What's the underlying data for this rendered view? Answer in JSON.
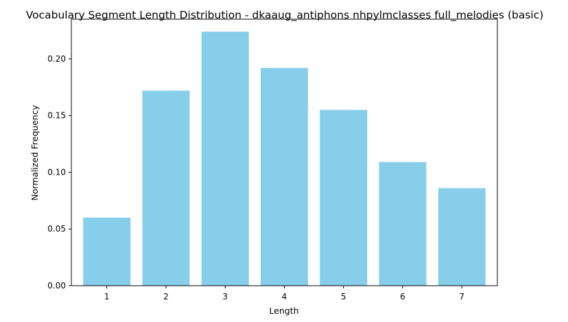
{
  "chart_data": {
    "type": "bar",
    "title": "Vocabulary Segment Length Distribution - dkaaug_antiphons nhpylmclasses full_melodies (basic)",
    "xlabel": "Length",
    "ylabel": "Normalized Frequency",
    "categories": [
      "1",
      "2",
      "3",
      "4",
      "5",
      "6",
      "7"
    ],
    "values": [
      0.06,
      0.172,
      0.224,
      0.192,
      0.155,
      0.109,
      0.086
    ],
    "ylim": [
      0,
      0.235
    ],
    "yticks": [
      0.0,
      0.05,
      0.1,
      0.15,
      0.2
    ],
    "ytick_labels": [
      "0.00",
      "0.05",
      "0.10",
      "0.15",
      "0.20"
    ],
    "bar_color": "#87ceeb",
    "grid": false,
    "legend": "none"
  }
}
